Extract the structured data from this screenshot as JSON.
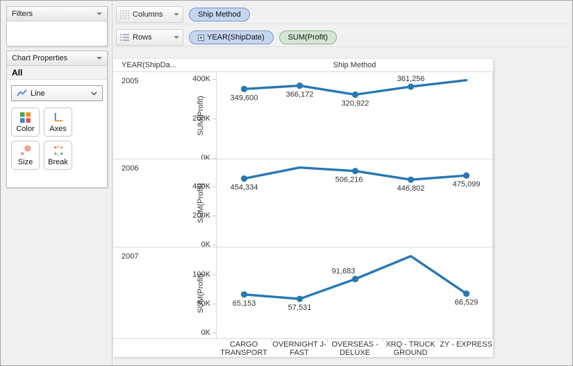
{
  "sidebar": {
    "filters": {
      "title": "Filters"
    },
    "chart_properties": {
      "title": "Chart Properties",
      "scope_label": "All",
      "chart_type": {
        "selected": "Line"
      },
      "buttons": [
        {
          "label": "Color",
          "icon": "color-squares-icon"
        },
        {
          "label": "Axes",
          "icon": "axes-icon"
        },
        {
          "label": "Size",
          "icon": "size-circles-icon"
        },
        {
          "label": "Break",
          "icon": "break-dots-icon"
        }
      ]
    }
  },
  "shelves": {
    "columns": {
      "label": "Columns",
      "pills": [
        {
          "text": "Ship Method",
          "type": "dimension-blue"
        }
      ]
    },
    "rows": {
      "label": "Rows",
      "pills": [
        {
          "text": "YEAR(ShipDate)",
          "type": "dimension-blue",
          "expandable": true
        },
        {
          "text": "SUM(Profit)",
          "type": "measure-green"
        }
      ]
    }
  },
  "chart_data": {
    "type": "line",
    "column_header": "Ship Method",
    "row_field_header": "YEAR(ShipDa...",
    "ylabel": "SUM(Profit)",
    "line_color": "#2678b2",
    "label_color": "#333333",
    "categories": [
      "CARGO TRANSPORT",
      "OVERNIGHT J-FAST",
      "OVERSEAS - DELUXE",
      "XRQ - TRUCK GROUND",
      "ZY - EXPRESS"
    ],
    "category_label_lines": [
      [
        "CARGO",
        "TRANSPORT"
      ],
      [
        "OVERNIGHT J-",
        "FAST"
      ],
      [
        "OVERSEAS -",
        "DELUXE"
      ],
      [
        "XRQ - TRUCK",
        "GROUND"
      ],
      [
        "ZY - EXPRESS"
      ]
    ],
    "panels": [
      {
        "year": "2005",
        "values": [
          349600,
          366172,
          320922,
          361256,
          394000
        ],
        "point_labels": [
          "349,600",
          "366,172",
          "320,922",
          "361,256",
          ""
        ],
        "label_positions": [
          "below",
          "below",
          "below",
          "above",
          ""
        ],
        "show_marker": [
          true,
          true,
          true,
          true,
          false
        ],
        "yticks": [
          {
            "value": 0,
            "label": "0K"
          },
          {
            "value": 200000,
            "label": "200K"
          },
          {
            "value": 400000,
            "label": "400K"
          }
        ],
        "ylim": [
          0,
          438000
        ]
      },
      {
        "year": "2006",
        "values": [
          454334,
          530000,
          506216,
          446802,
          475099
        ],
        "point_labels": [
          "454,334",
          "",
          "506,216",
          "446,802",
          "475,099"
        ],
        "label_positions": [
          "below",
          "",
          "below-left",
          "below",
          "below"
        ],
        "show_marker": [
          true,
          false,
          true,
          true,
          true
        ],
        "yticks": [
          {
            "value": 0,
            "label": "0K"
          },
          {
            "value": 200000,
            "label": "200K"
          },
          {
            "value": 400000,
            "label": "400K"
          }
        ],
        "ylim": [
          0,
          586000
        ]
      },
      {
        "year": "2007",
        "values": [
          65153,
          57531,
          91683,
          131000,
          66529
        ],
        "point_labels": [
          "65,153",
          "57,531",
          "91,683",
          "",
          "66,529"
        ],
        "label_positions": [
          "below",
          "below",
          "above-left",
          "",
          "below"
        ],
        "show_marker": [
          true,
          true,
          true,
          false,
          true
        ],
        "yticks": [
          {
            "value": 0,
            "label": "0K"
          },
          {
            "value": 50000,
            "label": "50K"
          },
          {
            "value": 100000,
            "label": "100K"
          }
        ],
        "ylim": [
          -10000,
          146000
        ]
      }
    ]
  }
}
